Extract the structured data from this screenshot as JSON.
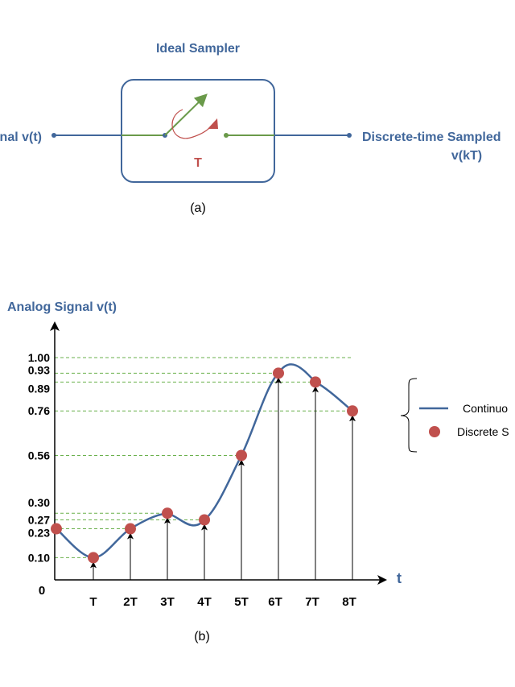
{
  "colors": {
    "blue": "#41679b",
    "green": "#6a9a4a",
    "red": "#c0504d",
    "grid": "#6ab04c"
  },
  "diagram_a": {
    "title": "Ideal Sampler",
    "input_label": "Signal v(t)",
    "output_label_line1": "Discrete-time Sampled",
    "output_label_line2": "v(kT)",
    "period_label": "T",
    "caption": "(a)"
  },
  "chart_data": {
    "type": "line",
    "ylabel": "Analog Signal v(t)",
    "xlabel": "t",
    "origin_label": "0",
    "categories": [
      "0",
      "T",
      "2T",
      "3T",
      "4T",
      "5T",
      "6T",
      "7T",
      "8T"
    ],
    "values": [
      0.23,
      0.1,
      0.23,
      0.3,
      0.27,
      0.56,
      0.93,
      0.89,
      0.76
    ],
    "y_tick_labels": [
      "1.00",
      "0.93",
      "0.89",
      "0.76",
      "0.56",
      "0.30",
      "0.27",
      "0.23",
      "0.10"
    ],
    "legend": {
      "line_label": "Continuo",
      "dot_label": "Discrete S",
      "placement": "right"
    },
    "caption": "(b)"
  }
}
